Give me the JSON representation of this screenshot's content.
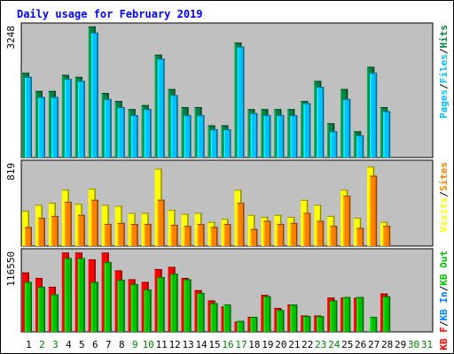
{
  "chart_data": {
    "type": "bar",
    "title": "Daily usage for February 2019",
    "categories": [
      "1",
      "2",
      "3",
      "4",
      "5",
      "6",
      "7",
      "8",
      "9",
      "10",
      "11",
      "12",
      "13",
      "14",
      "15",
      "16",
      "17",
      "18",
      "19",
      "20",
      "21",
      "22",
      "23",
      "24",
      "25",
      "26",
      "27",
      "28",
      "29",
      "30",
      "31"
    ],
    "weekend_days": [
      "2",
      "3",
      "9",
      "10",
      "16",
      "17",
      "23",
      "24",
      "30",
      "31"
    ],
    "colors": {
      "title": "#0000ff",
      "background": "#c0c0c0",
      "hits": "#008040",
      "files": "#00c0ff",
      "pages": "#00c0ff",
      "visits": "#ffff00",
      "sites": "#ff8000",
      "kb_f": "#ff0000",
      "kb_in": "#0080ff",
      "kb_out": "#00c000",
      "weekday_label": "#000000",
      "weekend_label": "#008000"
    },
    "panels": [
      {
        "id": "hits-files",
        "max_label": "3248",
        "ylim": [
          0,
          3248
        ],
        "legend": [
          {
            "text": "Pages",
            "color": "#00c0ff"
          },
          {
            "text": "/",
            "color": "#000000"
          },
          {
            "text": "Files",
            "color": "#00c0ff"
          },
          {
            "text": "/",
            "color": "#000000"
          },
          {
            "text": "Hits",
            "color": "#008040"
          }
        ],
        "series": [
          {
            "name": "Hits",
            "color": "#008040",
            "values": [
              2100,
              1650,
              1650,
              2050,
              2000,
              3250,
              1600,
              1400,
              1200,
              1300,
              2550,
              1700,
              1250,
              1250,
              800,
              800,
              2850,
              1200,
              1200,
              1200,
              1200,
              1400,
              1900,
              850,
              1700,
              650,
              2250,
              1250,
              0,
              0,
              0
            ]
          },
          {
            "name": "Files",
            "color": "#00c0ff",
            "values": [
              2000,
              1500,
              1500,
              1950,
              1900,
              3100,
              1450,
              1250,
              1050,
              1200,
              2450,
              1550,
              1050,
              1050,
              700,
              700,
              2750,
              1100,
              1050,
              1050,
              1050,
              1350,
              1750,
              650,
              1450,
              550,
              2100,
              1150,
              0,
              0,
              0
            ]
          }
        ]
      },
      {
        "id": "visits-sites",
        "max_label": "819",
        "ylim": [
          0,
          819
        ],
        "legend": [
          {
            "text": "Visits",
            "color": "#ffff00"
          },
          {
            "text": "/",
            "color": "#000000"
          },
          {
            "text": "Sites",
            "color": "#ff8000"
          }
        ],
        "series": [
          {
            "name": "Visits",
            "color": "#ffff00",
            "values": [
              350,
              410,
              430,
              560,
              420,
              570,
              410,
              400,
              330,
              330,
              770,
              360,
              320,
              330,
              240,
              270,
              560,
              310,
              290,
              310,
              290,
              460,
              410,
              300,
              560,
              280,
              790,
              240,
              0,
              0,
              0
            ]
          },
          {
            "name": "Sites",
            "color": "#ff8000",
            "values": [
              190,
              280,
              300,
              440,
              310,
              460,
              220,
              230,
              220,
              220,
              460,
              210,
              200,
              220,
              190,
              220,
              430,
              170,
              250,
              220,
              230,
              330,
              250,
              200,
              500,
              180,
              700,
              200,
              0,
              0,
              0
            ]
          }
        ]
      },
      {
        "id": "kbytes",
        "max_label": "116550",
        "ylim": [
          0,
          116550
        ],
        "legend": [
          {
            "text": "KB F",
            "color": "#ff0000"
          },
          {
            "text": "/",
            "color": "#000000"
          },
          {
            "text": "KB In",
            "color": "#0080ff"
          },
          {
            "text": "/",
            "color": "#000000"
          },
          {
            "text": "KB Out",
            "color": "#00c000"
          }
        ],
        "series": [
          {
            "name": "KB F",
            "color": "#ff0000",
            "values": [
              87000,
              79000,
              66000,
              116000,
              116000,
              106000,
              116000,
              90000,
              77000,
              73000,
              92000,
              95000,
              79000,
              61000,
              46000,
              37000,
              15000,
              22000,
              54000,
              35000,
              40000,
              24000,
              24000,
              50000,
              50000,
              50000,
              0,
              56000,
              0,
              0,
              0
            ]
          },
          {
            "name": "KB Out",
            "color": "#00c000",
            "values": [
              73000,
              66000,
              55000,
              108000,
              108000,
              73000,
              102000,
              76000,
              70000,
              62000,
              80000,
              85000,
              77000,
              57000,
              42000,
              40000,
              16000,
              22000,
              52000,
              32000,
              40000,
              23000,
              23000,
              46000,
              51000,
              51000,
              22000,
              52000,
              0,
              0,
              0
            ]
          }
        ]
      }
    ]
  }
}
